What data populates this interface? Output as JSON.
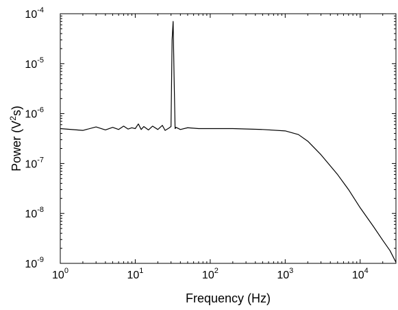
{
  "chart_data": {
    "type": "line",
    "title": "",
    "xlabel": "Frequency (Hz)",
    "ylabel_parts": {
      "pre": "Power (V",
      "sup": "2",
      "post": "s)"
    },
    "x_scale": "log",
    "y_scale": "log",
    "xlim": [
      1,
      30000
    ],
    "ylim": [
      1e-09,
      0.0001
    ],
    "grid": false,
    "legend": "none",
    "x_ticks": [
      {
        "value": 1,
        "base": "10",
        "exp": "0"
      },
      {
        "value": 10,
        "base": "10",
        "exp": "1"
      },
      {
        "value": 100,
        "base": "10",
        "exp": "2"
      },
      {
        "value": 1000,
        "base": "10",
        "exp": "3"
      },
      {
        "value": 10000,
        "base": "10",
        "exp": "4"
      }
    ],
    "y_ticks": [
      {
        "value": 1e-09,
        "base": "10",
        "exp": "-9"
      },
      {
        "value": 1e-08,
        "base": "10",
        "exp": "-8"
      },
      {
        "value": 1e-07,
        "base": "10",
        "exp": "-7"
      },
      {
        "value": 1e-06,
        "base": "10",
        "exp": "-6"
      },
      {
        "value": 1e-05,
        "base": "10",
        "exp": "-5"
      },
      {
        "value": 0.0001,
        "base": "10",
        "exp": "-4"
      }
    ],
    "series": [
      {
        "color": "#000000",
        "x": [
          1,
          2,
          3,
          4,
          5,
          6,
          7,
          8,
          9,
          10,
          11,
          12,
          13,
          15,
          17,
          20,
          23,
          25,
          28,
          30,
          31,
          32,
          33,
          34,
          35,
          40,
          50,
          70,
          100,
          200,
          500,
          1000,
          1500,
          2000,
          3000,
          5000,
          7000,
          10000,
          15000,
          20000,
          25000,
          30000
        ],
        "y": [
          5e-07,
          4.6e-07,
          5.4e-07,
          4.7e-07,
          5.3e-07,
          4.8e-07,
          5.6e-07,
          4.9e-07,
          5.2e-07,
          5e-07,
          6.2e-07,
          4.8e-07,
          5.5e-07,
          4.7e-07,
          5.6e-07,
          4.8e-07,
          5.8e-07,
          4.6e-07,
          5.1e-07,
          5.5e-07,
          3e-05,
          7e-05,
          5e-06,
          5e-07,
          5.3e-07,
          4.8e-07,
          5.2e-07,
          5e-07,
          5e-07,
          5e-07,
          4.8e-07,
          4.5e-07,
          3.8e-07,
          2.8e-07,
          1.5e-07,
          6e-08,
          3e-08,
          1.3e-08,
          5.5e-09,
          2.9e-09,
          1.8e-09,
          1.05e-09
        ]
      }
    ]
  }
}
